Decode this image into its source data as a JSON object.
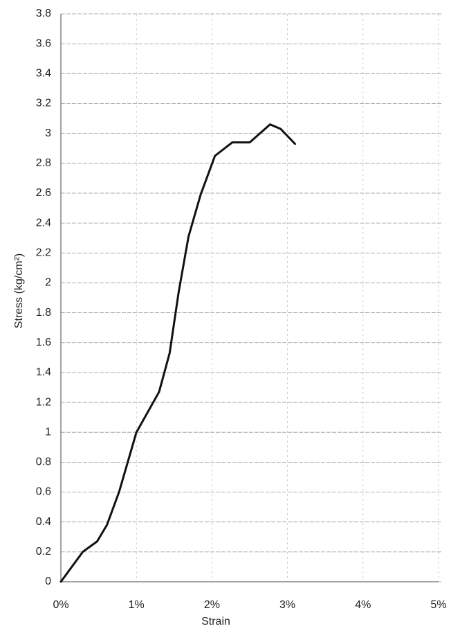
{
  "chart_data": {
    "type": "line",
    "x_label": "Strain",
    "y_label": "Stress (kg/cm²)",
    "xlim": [
      0,
      5
    ],
    "xticks": [
      {
        "value": 0,
        "label": "0%"
      },
      {
        "value": 1,
        "label": "1%"
      },
      {
        "value": 2,
        "label": "2%"
      },
      {
        "value": 3,
        "label": "3%"
      },
      {
        "value": 4,
        "label": "4%"
      },
      {
        "value": 5,
        "label": "5%"
      }
    ],
    "ylim": [
      0,
      3.8
    ],
    "yticks": [
      0,
      0.2,
      0.4,
      0.6,
      0.8,
      1,
      1.2,
      1.4,
      1.6,
      1.8,
      2,
      2.2,
      2.4,
      2.6,
      2.8,
      3,
      3.2,
      3.4,
      3.6,
      3.8
    ],
    "grid": true,
    "series": [
      {
        "color": "#111111",
        "x": [
          0,
          0.29,
          0.48,
          0.61,
          0.77,
          1.0,
          1.3,
          1.44,
          1.56,
          1.69,
          1.85,
          2.04,
          2.27,
          2.5,
          2.77,
          2.91,
          3.1
        ],
        "values": [
          0,
          0.2,
          0.27,
          0.38,
          0.6,
          1.0,
          1.27,
          1.53,
          1.94,
          2.31,
          2.59,
          2.85,
          2.94,
          2.94,
          3.06,
          3.03,
          2.93
        ]
      }
    ]
  }
}
